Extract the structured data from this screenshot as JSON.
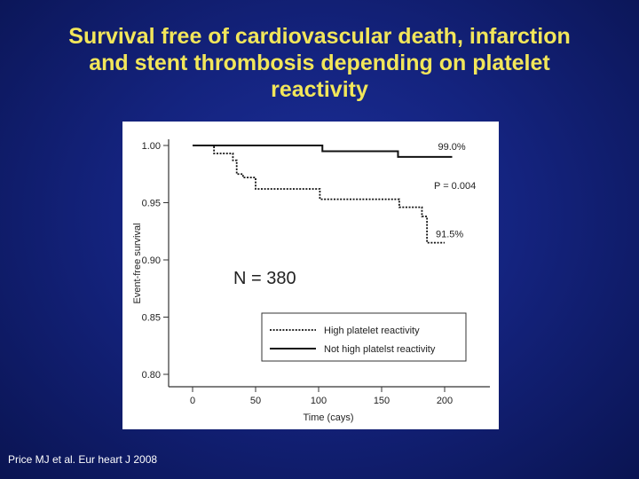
{
  "slide": {
    "title_lines": [
      "Survival free of cardiovascular death, infarction",
      "and stent thrombosis depending on platelet",
      "reactivity"
    ],
    "citation": "Price MJ et al. Eur heart J 2008"
  },
  "chart_data": {
    "type": "line",
    "title": "",
    "xlabel": "Time (cays)",
    "ylabel": "Event-free survival",
    "xlim": [
      -15,
      240
    ],
    "ylim": [
      0.78,
      1.005
    ],
    "x_ticks": [
      0,
      50,
      100,
      150,
      200
    ],
    "x_tick_labels": [
      "0",
      "50",
      "100",
      "150",
      "200"
    ],
    "y_ticks": [
      0.8,
      0.85,
      0.9,
      0.95,
      1.0
    ],
    "y_tick_labels": [
      "0.80",
      "0.85",
      "0.90",
      "0.95",
      "1.00"
    ],
    "series": [
      {
        "name": "High platelet reactivity",
        "style": "dotted",
        "color": "#111111",
        "steps": [
          {
            "x": 0,
            "y": 1.0
          },
          {
            "x": 17,
            "y": 0.993
          },
          {
            "x": 32,
            "y": 0.987
          },
          {
            "x": 35,
            "y": 0.975
          },
          {
            "x": 40,
            "y": 0.972
          },
          {
            "x": 50,
            "y": 0.962
          },
          {
            "x": 101,
            "y": 0.953
          },
          {
            "x": 164,
            "y": 0.946
          },
          {
            "x": 182,
            "y": 0.938
          },
          {
            "x": 186,
            "y": 0.915
          },
          {
            "x": 200,
            "y": 0.915
          }
        ],
        "end_label": "91.5%"
      },
      {
        "name": "Not high platelst reactivity",
        "style": "solid",
        "color": "#111111",
        "steps": [
          {
            "x": 0,
            "y": 1.0
          },
          {
            "x": 103,
            "y": 0.995
          },
          {
            "x": 163,
            "y": 0.99
          },
          {
            "x": 206,
            "y": 0.99
          }
        ],
        "end_label": "99.0%"
      }
    ],
    "annotations": {
      "p_value": "P = 0.004",
      "n_label": "N = 380"
    },
    "legend": {
      "position": "bottom-right",
      "entries": [
        "High platelet reactivity",
        "Not high platelst reactivity"
      ]
    }
  }
}
